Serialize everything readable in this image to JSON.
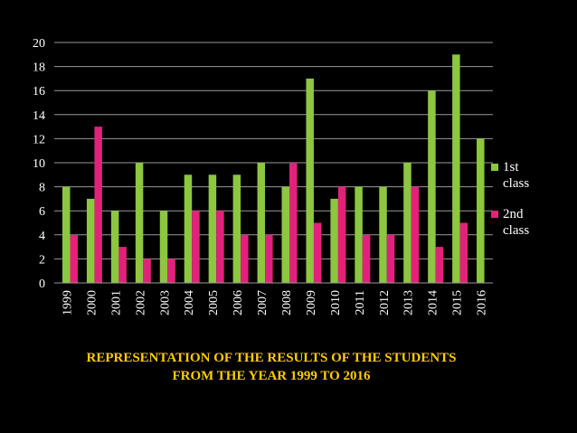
{
  "chart_data": {
    "type": "bar",
    "title": [
      "REPRESENTATION OF THE RESULTS OF THE STUDENTS",
      "FROM THE YEAR 1999 TO 2016"
    ],
    "categories": [
      "1999",
      "2000",
      "2001",
      "2002",
      "2003",
      "2004",
      "2005",
      "2006",
      "2007",
      "2008",
      "2009",
      "2010",
      "2011",
      "2012",
      "2013",
      "2014",
      "2015",
      "2016"
    ],
    "series": [
      {
        "name": "1st class",
        "color": "#8dc63f",
        "values": [
          8,
          7,
          6,
          10,
          6,
          9,
          9,
          9,
          10,
          8,
          17,
          7,
          8,
          8,
          10,
          16,
          19,
          12
        ]
      },
      {
        "name": "2nd class",
        "color": "#e2227a",
        "values": [
          4,
          13,
          3,
          2,
          2,
          6,
          6,
          4,
          4,
          10,
          5,
          8,
          4,
          4,
          8,
          3,
          5,
          null
        ]
      }
    ],
    "ylim": [
      0,
      20
    ],
    "yticks": [
      0,
      2,
      4,
      6,
      8,
      10,
      12,
      14,
      16,
      18,
      20
    ],
    "grid": true,
    "legend": "right"
  }
}
